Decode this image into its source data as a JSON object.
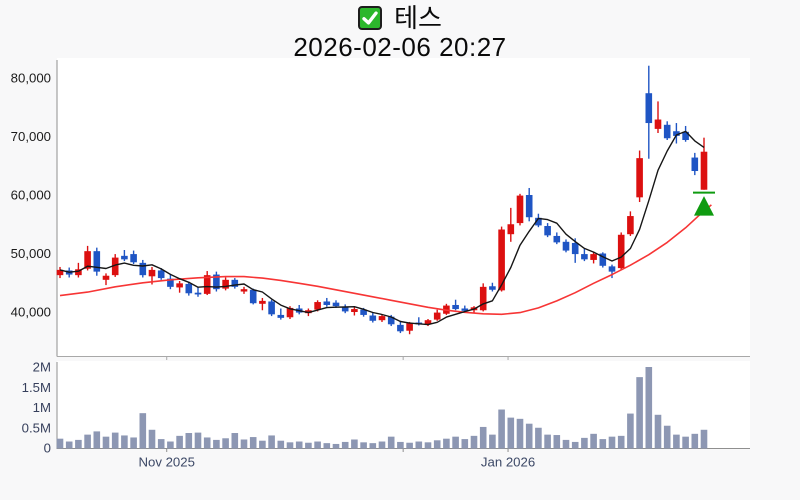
{
  "title": {
    "symbol_name": "테스",
    "datetime": "2026-02-06 20:27",
    "checkbox_checked": true,
    "checkbox_color": "#2cb72c"
  },
  "chart_data": {
    "type": "candlestick_with_volume",
    "title": "테스",
    "timestamp": "2026-02-06 20:27",
    "price_axis": {
      "ticks": [
        "80,000",
        "70,000",
        "60,000",
        "50,000",
        "40,000"
      ],
      "tick_values": [
        80000,
        70000,
        60000,
        50000,
        40000
      ],
      "visible_range": [
        32500,
        83000
      ],
      "grid": false,
      "label_color": "#1b1b1b"
    },
    "volume_axis": {
      "ticks": [
        "2M",
        "1.5M",
        "1M",
        "0.5M",
        "0"
      ],
      "tick_values": [
        2.0,
        1.5,
        1.0,
        0.5,
        0
      ],
      "unit": "shares (millions)",
      "label_color": "#363f5c"
    },
    "x_axis": {
      "labels": [
        {
          "text": "Nov 2025",
          "index": 11.6
        },
        {
          "text": "Jan 2026",
          "index": 48.7
        }
      ],
      "tick_indices": [
        11.6,
        37.3,
        48.7
      ],
      "label_color": "#3c4866"
    },
    "candles_ohlc": [
      [
        46300,
        47700,
        45800,
        47200
      ],
      [
        47100,
        47600,
        45900,
        46400
      ],
      [
        46300,
        48400,
        45900,
        47300
      ],
      [
        47400,
        51300,
        47100,
        50400
      ],
      [
        50400,
        51000,
        46200,
        46900
      ],
      [
        45500,
        46600,
        44600,
        46200
      ],
      [
        46300,
        49900,
        46000,
        49300
      ],
      [
        49600,
        50600,
        48700,
        49000
      ],
      [
        49900,
        50500,
        48200,
        48500
      ],
      [
        48400,
        48900,
        45900,
        46300
      ],
      [
        46100,
        47700,
        44700,
        47200
      ],
      [
        47100,
        47500,
        45500,
        45800
      ],
      [
        45700,
        46400,
        43900,
        44300
      ],
      [
        44200,
        45300,
        43300,
        44900
      ],
      [
        44800,
        45200,
        42800,
        43200
      ],
      [
        43300,
        44200,
        42600,
        43000
      ],
      [
        43100,
        47000,
        42900,
        46300
      ],
      [
        46400,
        46900,
        43500,
        43900
      ],
      [
        44000,
        45900,
        43700,
        45500
      ],
      [
        45500,
        45800,
        44000,
        44300
      ],
      [
        43500,
        44300,
        43100,
        43900
      ],
      [
        43800,
        44000,
        41300,
        41500
      ],
      [
        41400,
        42400,
        40300,
        41900
      ],
      [
        41800,
        42100,
        39300,
        39600
      ],
      [
        39500,
        40600,
        38700,
        39000
      ],
      [
        39100,
        41000,
        38800,
        40700
      ],
      [
        40600,
        41200,
        39600,
        39900
      ],
      [
        39800,
        40600,
        39300,
        40300
      ],
      [
        40400,
        42000,
        40100,
        41700
      ],
      [
        41800,
        42400,
        40900,
        41200
      ],
      [
        41600,
        42000,
        40700,
        41000
      ],
      [
        40900,
        41300,
        39800,
        40100
      ],
      [
        40000,
        40800,
        39400,
        40500
      ],
      [
        40400,
        40700,
        39200,
        39500
      ],
      [
        39400,
        39900,
        38200,
        38500
      ],
      [
        38600,
        39600,
        38300,
        39300
      ],
      [
        39200,
        39500,
        37600,
        37900
      ],
      [
        37800,
        38500,
        36400,
        36700
      ],
      [
        36800,
        38300,
        36200,
        38100
      ],
      [
        38200,
        39100,
        37700,
        37900
      ],
      [
        37900,
        38800,
        37600,
        38600
      ],
      [
        38700,
        40400,
        38500,
        39900
      ],
      [
        39700,
        41400,
        39500,
        41100
      ],
      [
        41200,
        42100,
        40300,
        40500
      ],
      [
        40600,
        41100,
        39900,
        40200
      ],
      [
        40300,
        41000,
        39800,
        40800
      ],
      [
        40300,
        44900,
        40100,
        44300
      ],
      [
        44400,
        45000,
        43500,
        43800
      ],
      [
        43700,
        54600,
        43500,
        54100
      ],
      [
        53300,
        57800,
        52000,
        55000
      ],
      [
        55200,
        60200,
        54800,
        59900
      ],
      [
        60000,
        61200,
        55500,
        56200
      ],
      [
        56100,
        56800,
        54500,
        54800
      ],
      [
        54700,
        55200,
        52800,
        53100
      ],
      [
        53000,
        53600,
        51600,
        51900
      ],
      [
        52000,
        52400,
        50200,
        50500
      ],
      [
        51800,
        52600,
        48400,
        49900
      ],
      [
        49900,
        50800,
        48700,
        49000
      ],
      [
        48900,
        50300,
        48300,
        49900
      ],
      [
        50000,
        50200,
        47600,
        47900
      ],
      [
        47800,
        48100,
        45800,
        46900
      ],
      [
        47500,
        53600,
        47200,
        53200
      ],
      [
        53300,
        57200,
        53000,
        56400
      ],
      [
        59600,
        67600,
        58800,
        66300
      ],
      [
        77400,
        82100,
        66200,
        72300
      ],
      [
        71300,
        76000,
        70600,
        72900
      ],
      [
        72000,
        72600,
        69400,
        69700
      ],
      [
        70900,
        72300,
        68800,
        70100
      ],
      [
        70800,
        71800,
        69100,
        69400
      ],
      [
        66400,
        67200,
        63400,
        64100
      ],
      [
        60900,
        69800,
        60900,
        67400
      ]
    ],
    "volumes_m": [
      0.23,
      0.16,
      0.2,
      0.33,
      0.41,
      0.28,
      0.38,
      0.31,
      0.26,
      0.86,
      0.45,
      0.22,
      0.16,
      0.3,
      0.37,
      0.38,
      0.26,
      0.2,
      0.24,
      0.37,
      0.21,
      0.27,
      0.18,
      0.31,
      0.18,
      0.14,
      0.16,
      0.13,
      0.16,
      0.12,
      0.1,
      0.15,
      0.21,
      0.14,
      0.12,
      0.16,
      0.28,
      0.15,
      0.13,
      0.16,
      0.14,
      0.19,
      0.23,
      0.28,
      0.22,
      0.3,
      0.52,
      0.33,
      0.95,
      0.75,
      0.72,
      0.6,
      0.5,
      0.33,
      0.32,
      0.2,
      0.15,
      0.25,
      0.35,
      0.22,
      0.28,
      0.3,
      0.85,
      1.75,
      2.0,
      0.82,
      0.55,
      0.33,
      0.28,
      0.35,
      0.45
    ],
    "ma_short": {
      "period": 5,
      "computed_from_closes": true
    },
    "ma_long_points": [
      [
        0,
        42800
      ],
      [
        3,
        43400
      ],
      [
        6,
        44300
      ],
      [
        9,
        45000
      ],
      [
        12,
        45500
      ],
      [
        15,
        45850
      ],
      [
        18,
        46050
      ],
      [
        20,
        46050
      ],
      [
        22,
        45800
      ],
      [
        24,
        45400
      ],
      [
        26,
        44900
      ],
      [
        28,
        44400
      ],
      [
        30,
        43800
      ],
      [
        32,
        43200
      ],
      [
        34,
        42600
      ],
      [
        36,
        42000
      ],
      [
        38,
        41400
      ],
      [
        40,
        40800
      ],
      [
        42,
        40300
      ],
      [
        44,
        39950
      ],
      [
        46,
        39700
      ],
      [
        48,
        39600
      ],
      [
        50,
        39900
      ],
      [
        52,
        40700
      ],
      [
        54,
        41900
      ],
      [
        56,
        43300
      ],
      [
        58,
        44900
      ],
      [
        60,
        46400
      ],
      [
        62,
        48000
      ],
      [
        64,
        49800
      ],
      [
        66,
        51900
      ],
      [
        68,
        54400
      ],
      [
        70,
        57300
      ],
      [
        70.8,
        58300
      ]
    ],
    "marker": {
      "type": "up-triangle-signal",
      "index": 70,
      "price": 60400,
      "color": "#0f9b10"
    },
    "colors": {
      "up": "#dc1010",
      "down": "#1f55c4",
      "ma_short": "#161616",
      "ma_long": "#f73535",
      "volume_bar": "#8d97b3",
      "axis_line": "#8f8f8f",
      "plot_bg": "#ffffff"
    }
  }
}
